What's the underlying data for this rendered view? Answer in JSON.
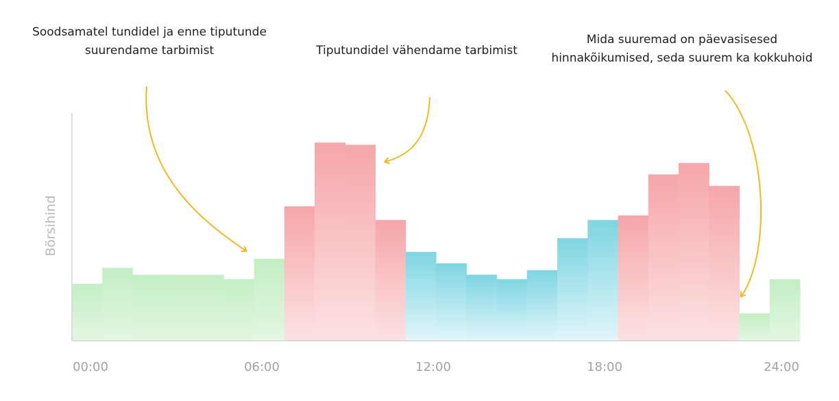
{
  "annotations": {
    "left": "Soodsamatel tundidel ja enne tiputunde suurendame tarbimist",
    "middle": "Tiputundidel vähendame tarbimist",
    "right": "Mida suuremad on päevasisesed hinnakõikumised, seda suurem ka kokkuhoid"
  },
  "chart_data": {
    "type": "bar",
    "ylabel": "Börsihind",
    "xlabel": "",
    "xlim": [
      0,
      24
    ],
    "ylim": [
      0,
      100
    ],
    "x_ticks": [
      "00:00",
      "06:00",
      "12:00",
      "18:00",
      "24:00"
    ],
    "grid": false,
    "legend": "none",
    "hours": [
      0,
      1,
      2,
      3,
      4,
      5,
      6,
      7,
      8,
      9,
      10,
      11,
      12,
      13,
      14,
      15,
      16,
      17,
      18,
      19,
      20,
      21,
      22,
      23
    ],
    "values": [
      25,
      32,
      29,
      29,
      29,
      27,
      36,
      59,
      87,
      86,
      53,
      39,
      34,
      29,
      27,
      31,
      45,
      53,
      55,
      73,
      78,
      68,
      12,
      27
    ],
    "categories": [
      "cheap",
      "cheap",
      "cheap",
      "cheap",
      "cheap",
      "cheap",
      "cheap",
      "peak",
      "peak",
      "peak",
      "peak",
      "mid",
      "mid",
      "mid",
      "mid",
      "mid",
      "mid",
      "mid",
      "peak",
      "peak",
      "peak",
      "peak",
      "cheap",
      "cheap"
    ],
    "colors": {
      "cheap_top": "#c3eec3",
      "cheap_bottom": "#e3f7e3",
      "peak_top": "#f6a6a9",
      "peak_bottom": "#fce2e3",
      "mid_top": "#7ed5e2",
      "mid_bottom": "#e1f6fa",
      "arrow": "#f2b824",
      "axis": "#dcdcdc"
    }
  }
}
